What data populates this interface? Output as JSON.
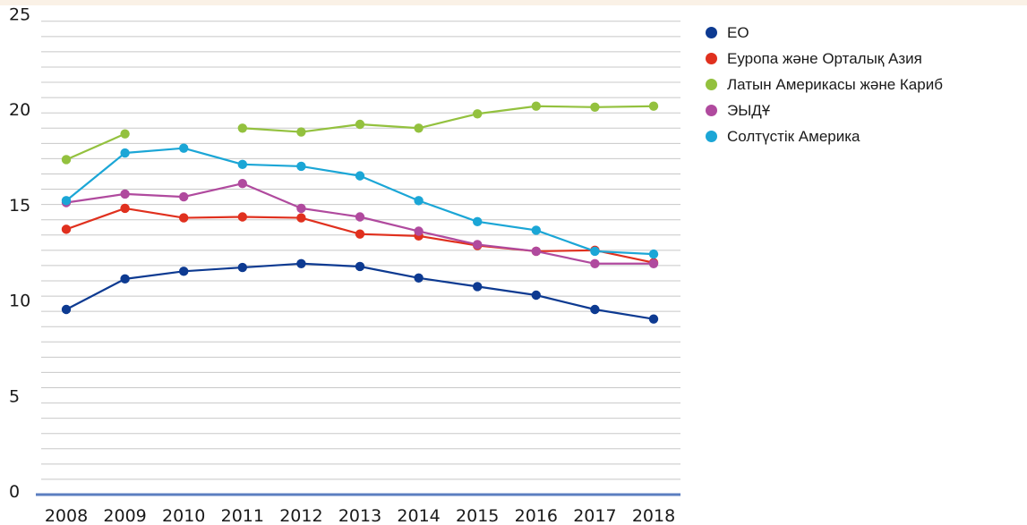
{
  "theme": {
    "top_band": "#faf1e6",
    "grid": "#c8c8c8",
    "baseline": "#5b7ec0",
    "text": "#1a1a1a"
  },
  "chart_data": {
    "type": "line",
    "title": "",
    "xlabel": "",
    "ylabel": "",
    "x": [
      "2008",
      "2009",
      "2010",
      "2011",
      "2012",
      "2013",
      "2014",
      "2015",
      "2016",
      "2017",
      "2018"
    ],
    "ylim": [
      0,
      25
    ],
    "yticks": [
      "0",
      "5",
      "10",
      "15",
      "20",
      "25"
    ],
    "grid": true,
    "minor_gridlines_per_unit": 0.8,
    "legend_position": "right",
    "series": [
      {
        "name": "ЕО",
        "color": "#0d3a91",
        "values": [
          9.7,
          11.3,
          11.7,
          11.9,
          12.1,
          11.95,
          11.35,
          10.9,
          10.45,
          9.7,
          9.2
        ]
      },
      {
        "name": "Еуропа және Орталық Азия",
        "color": "#e0301e",
        "values": [
          13.9,
          15.0,
          14.5,
          14.55,
          14.5,
          13.65,
          13.55,
          13.05,
          12.75,
          12.8,
          12.15
        ]
      },
      {
        "name": "Латын Америкасы және Кариб",
        "color": "#93c13e",
        "values": [
          17.55,
          18.9,
          null,
          19.2,
          19.0,
          19.4,
          19.2,
          19.95,
          20.35,
          20.3,
          20.35
        ]
      },
      {
        "name": "ЭЫДҰ",
        "color": "#b04a9e",
        "values": [
          15.3,
          15.75,
          15.6,
          16.3,
          15.0,
          14.55,
          13.8,
          13.1,
          12.75,
          12.1,
          12.1
        ]
      },
      {
        "name": "Солтүстік Америка",
        "color": "#1ba6d6",
        "values": [
          15.4,
          17.9,
          18.15,
          17.3,
          17.2,
          16.7,
          15.4,
          14.3,
          13.85,
          12.75,
          12.6
        ]
      }
    ]
  }
}
